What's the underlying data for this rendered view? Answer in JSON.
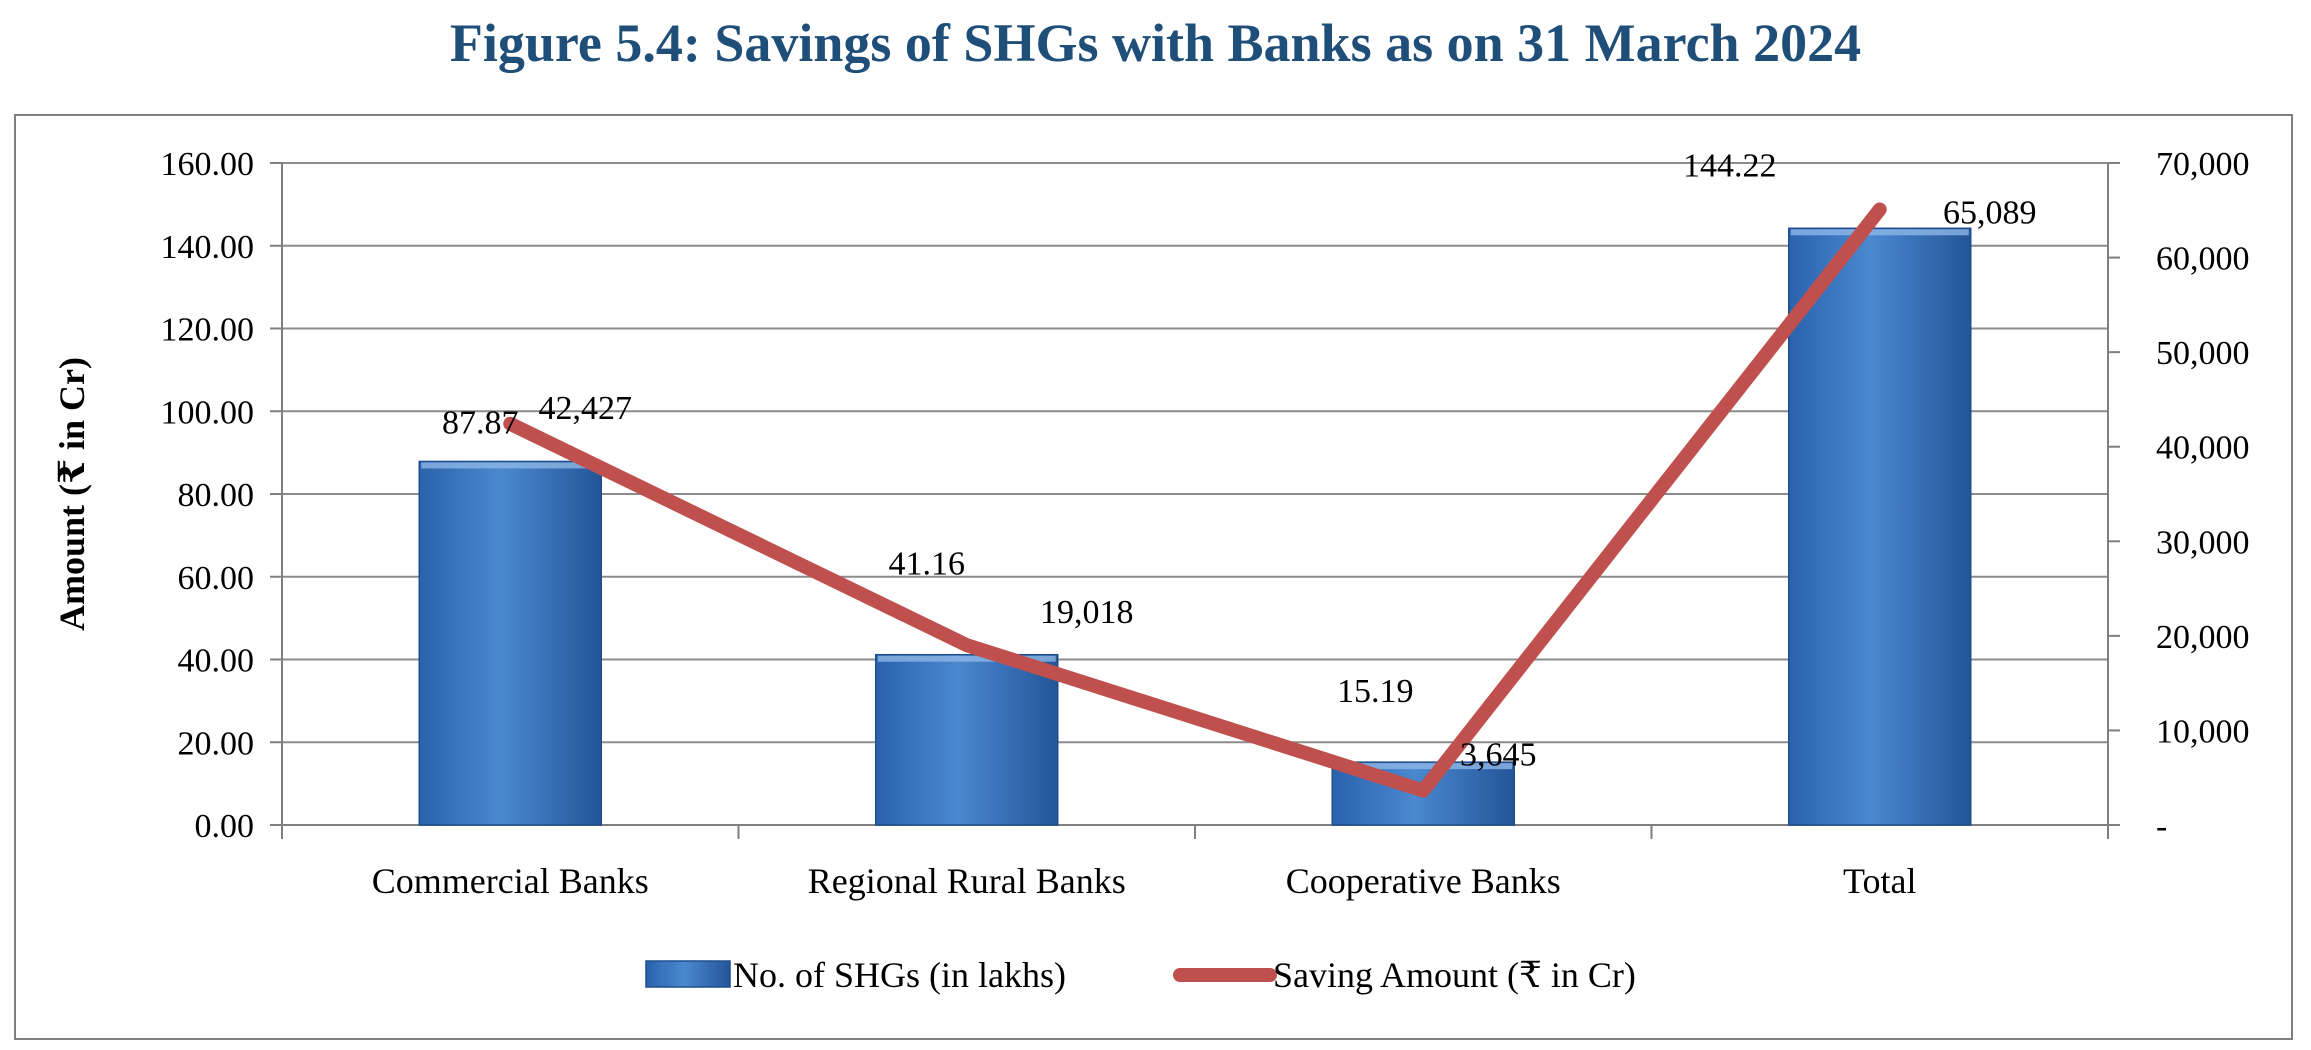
{
  "chart_data": {
    "type": "bar",
    "title": "Figure 5.4: Savings of SHGs with Banks as on 31 March 2024",
    "categories": [
      "Commercial Banks",
      "Regional Rural Banks",
      "Cooperative Banks",
      "Total"
    ],
    "series": [
      {
        "name": "No. of SHGs (in lakhs)",
        "type": "bar",
        "axis": "left",
        "values": [
          87.87,
          41.16,
          15.19,
          144.22
        ],
        "labels": [
          "87.87",
          "41.16",
          "15.19",
          "144.22"
        ],
        "color": "#3a78c2"
      },
      {
        "name": "Saving Amount (₹ in Cr)",
        "type": "line",
        "axis": "right",
        "values": [
          42427,
          19018,
          3645,
          65089
        ],
        "labels": [
          "42,427",
          "19,018",
          "3,645",
          "65,089"
        ],
        "color": "#c0504d"
      }
    ],
    "ylabel": "Amount (₹ in Cr)",
    "ylim": [
      0,
      160
    ],
    "y_ticks": [
      "0.00",
      "20.00",
      "40.00",
      "60.00",
      "80.00",
      "100.00",
      "120.00",
      "140.00",
      "160.00"
    ],
    "y2lim": [
      0,
      70000
    ],
    "y2_ticks": [
      "-",
      "10,000",
      "20,000",
      "30,000",
      "40,000",
      "50,000",
      "60,000",
      "70,000"
    ],
    "grid": true,
    "legend_position": "bottom"
  }
}
